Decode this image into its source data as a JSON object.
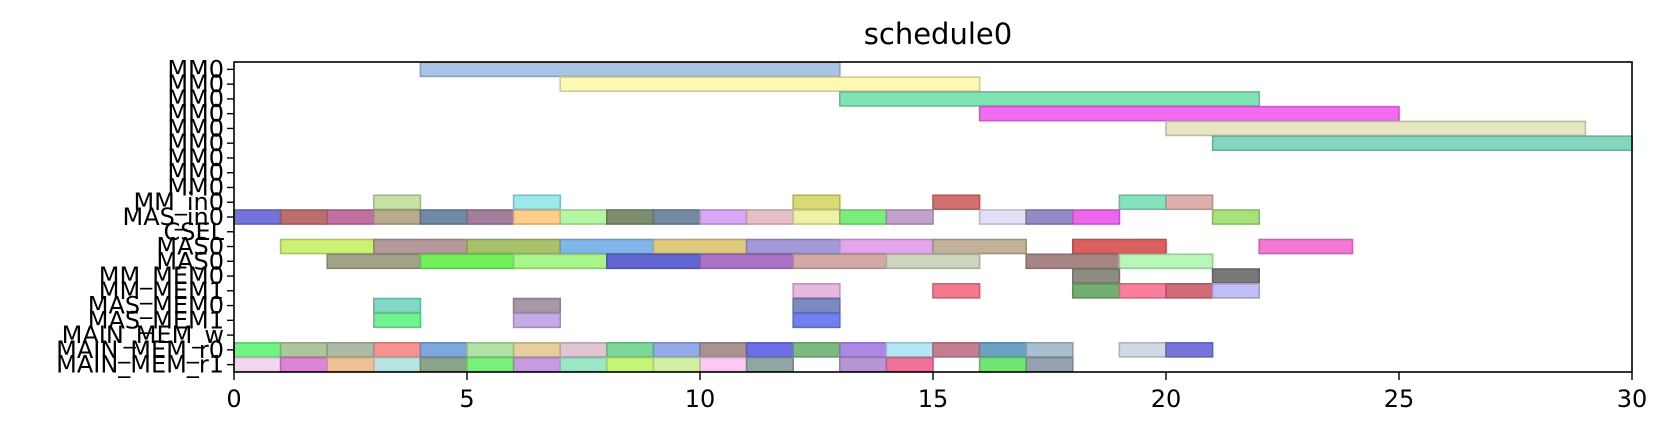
{
  "chart_data": {
    "type": "gantt",
    "title": "schedule0",
    "xlim": [
      0,
      30
    ],
    "xticks": [
      0,
      5,
      10,
      15,
      20,
      25,
      30
    ],
    "rows": [
      "MM0",
      "MM0",
      "MM0",
      "MM0",
      "MM0",
      "MM0",
      "MM0",
      "MM0",
      "MM0",
      "MM_in0",
      "MAS_in0",
      "CSEL",
      "MAS0",
      "MAS0",
      "MM_MEM0",
      "MM_MEM1",
      "MAS_MEM0",
      "MAS_MEM1",
      "MAIN_MEM_w",
      "MAIN_MEM_r0",
      "MAIN_MEM_r1"
    ],
    "ytick_labels": [
      "MM0",
      "MM0",
      "MM0",
      "MM0",
      "MM0",
      "MM0",
      "MM0",
      "MM0",
      "MM0",
      "MM_in0",
      "MAS_in0",
      "CSEL",
      "MAS0",
      "MAS0",
      "MM_MEM0",
      "MM_MEM1",
      "MAS_MEM0",
      "MAS_MEM1",
      "MAIN_MEM_w",
      "MAIN_MEM_r0",
      "MAIN_MEM_r1"
    ],
    "tasks": [
      {
        "row": 0,
        "start": 4,
        "end": 13,
        "color": "#aac4e6"
      },
      {
        "row": 1,
        "start": 7,
        "end": 16,
        "color": "#fdf9b4"
      },
      {
        "row": 2,
        "start": 13,
        "end": 22,
        "color": "#7ee4b4"
      },
      {
        "row": 3,
        "start": 16,
        "end": 25,
        "color": "#f26cf2"
      },
      {
        "row": 4,
        "start": 20,
        "end": 29,
        "color": "#e6e7c1"
      },
      {
        "row": 5,
        "start": 21,
        "end": 30,
        "color": "#84d6bf"
      },
      {
        "row": 9,
        "start": 3,
        "end": 4,
        "color": "#c6e1a4"
      },
      {
        "row": 9,
        "start": 6,
        "end": 7,
        "color": "#9aeaeb"
      },
      {
        "row": 9,
        "start": 12,
        "end": 13,
        "color": "#d9d975"
      },
      {
        "row": 9,
        "start": 15,
        "end": 16,
        "color": "#d36f6f"
      },
      {
        "row": 9,
        "start": 19,
        "end": 20,
        "color": "#86e2bc"
      },
      {
        "row": 9,
        "start": 20,
        "end": 21,
        "color": "#deafaa"
      },
      {
        "row": 10,
        "start": 0,
        "end": 1,
        "color": "#7274d9"
      },
      {
        "row": 10,
        "start": 1,
        "end": 2,
        "color": "#bc6d6d"
      },
      {
        "row": 10,
        "start": 2,
        "end": 3,
        "color": "#c26fa3"
      },
      {
        "row": 10,
        "start": 3,
        "end": 4,
        "color": "#b8ac8f"
      },
      {
        "row": 10,
        "start": 4,
        "end": 5,
        "color": "#6e8ba6"
      },
      {
        "row": 10,
        "start": 5,
        "end": 6,
        "color": "#a17f9c"
      },
      {
        "row": 10,
        "start": 6,
        "end": 7,
        "color": "#fecd8a"
      },
      {
        "row": 10,
        "start": 7,
        "end": 8,
        "color": "#b4f7a3"
      },
      {
        "row": 10,
        "start": 8,
        "end": 9,
        "color": "#7d8e6e"
      },
      {
        "row": 10,
        "start": 9,
        "end": 10,
        "color": "#738aa0"
      },
      {
        "row": 10,
        "start": 10,
        "end": 11,
        "color": "#d7a8f3"
      },
      {
        "row": 10,
        "start": 11,
        "end": 12,
        "color": "#e7bfc7"
      },
      {
        "row": 10,
        "start": 12,
        "end": 13,
        "color": "#eef2a6"
      },
      {
        "row": 10,
        "start": 13,
        "end": 14,
        "color": "#7cec7e"
      },
      {
        "row": 10,
        "start": 14,
        "end": 15,
        "color": "#c2a2cd"
      },
      {
        "row": 10,
        "start": 16,
        "end": 17,
        "color": "#e4dff7"
      },
      {
        "row": 10,
        "start": 17,
        "end": 18,
        "color": "#928ac5"
      },
      {
        "row": 10,
        "start": 18,
        "end": 19,
        "color": "#ee65ee"
      },
      {
        "row": 10,
        "start": 21,
        "end": 22,
        "color": "#a5e27a"
      },
      {
        "row": 12,
        "start": 1,
        "end": 3,
        "color": "#cdf174"
      },
      {
        "row": 12,
        "start": 3,
        "end": 5,
        "color": "#b49a9a"
      },
      {
        "row": 12,
        "start": 5,
        "end": 7,
        "color": "#a8c16a"
      },
      {
        "row": 12,
        "start": 7,
        "end": 9,
        "color": "#80b6ea"
      },
      {
        "row": 12,
        "start": 9,
        "end": 11,
        "color": "#dfca7f"
      },
      {
        "row": 12,
        "start": 11,
        "end": 13,
        "color": "#a49ad9"
      },
      {
        "row": 12,
        "start": 13,
        "end": 15,
        "color": "#e3a6ea"
      },
      {
        "row": 12,
        "start": 15,
        "end": 17,
        "color": "#c1b29b"
      },
      {
        "row": 12,
        "start": 18,
        "end": 20,
        "color": "#dc5f5f"
      },
      {
        "row": 12,
        "start": 22,
        "end": 24,
        "color": "#f478d6"
      },
      {
        "row": 13,
        "start": 2,
        "end": 4,
        "color": "#a2a388"
      },
      {
        "row": 13,
        "start": 4,
        "end": 6,
        "color": "#71f05c"
      },
      {
        "row": 13,
        "start": 6,
        "end": 8,
        "color": "#a9f589"
      },
      {
        "row": 13,
        "start": 8,
        "end": 10,
        "color": "#6366d2"
      },
      {
        "row": 13,
        "start": 10,
        "end": 12,
        "color": "#aa72c6"
      },
      {
        "row": 13,
        "start": 12,
        "end": 14,
        "color": "#d3a8a8"
      },
      {
        "row": 13,
        "start": 14,
        "end": 16,
        "color": "#cfd6bf"
      },
      {
        "row": 13,
        "start": 17,
        "end": 19,
        "color": "#a88585"
      },
      {
        "row": 13,
        "start": 19,
        "end": 21,
        "color": "#b7f7b8"
      },
      {
        "row": 14,
        "start": 18,
        "end": 19,
        "color": "#8c8c80"
      },
      {
        "row": 14,
        "start": 21,
        "end": 22,
        "color": "#787878"
      },
      {
        "row": 15,
        "start": 12,
        "end": 13,
        "color": "#e8b7df"
      },
      {
        "row": 15,
        "start": 15,
        "end": 16,
        "color": "#f37a8c"
      },
      {
        "row": 15,
        "start": 18,
        "end": 19,
        "color": "#72ad71"
      },
      {
        "row": 15,
        "start": 19,
        "end": 20,
        "color": "#fb7f9d"
      },
      {
        "row": 15,
        "start": 20,
        "end": 21,
        "color": "#d26a78"
      },
      {
        "row": 15,
        "start": 21,
        "end": 22,
        "color": "#bfc0f7"
      },
      {
        "row": 16,
        "start": 3,
        "end": 4,
        "color": "#7fd9c6"
      },
      {
        "row": 16,
        "start": 6,
        "end": 7,
        "color": "#a698a6"
      },
      {
        "row": 16,
        "start": 12,
        "end": 13,
        "color": "#7c89c2"
      },
      {
        "row": 17,
        "start": 3,
        "end": 4,
        "color": "#6ff48f"
      },
      {
        "row": 17,
        "start": 6,
        "end": 7,
        "color": "#c6ace6"
      },
      {
        "row": 17,
        "start": 12,
        "end": 13,
        "color": "#6f80f0"
      },
      {
        "row": 19,
        "start": 0,
        "end": 1,
        "color": "#70f583"
      },
      {
        "row": 19,
        "start": 1,
        "end": 2,
        "color": "#aec69c"
      },
      {
        "row": 19,
        "start": 2,
        "end": 3,
        "color": "#aebaa3"
      },
      {
        "row": 19,
        "start": 3,
        "end": 4,
        "color": "#f79391"
      },
      {
        "row": 19,
        "start": 4,
        "end": 5,
        "color": "#7ea6df"
      },
      {
        "row": 19,
        "start": 5,
        "end": 6,
        "color": "#b0e3a5"
      },
      {
        "row": 19,
        "start": 6,
        "end": 7,
        "color": "#e6cf9f"
      },
      {
        "row": 19,
        "start": 7,
        "end": 8,
        "color": "#e3c4d3"
      },
      {
        "row": 19,
        "start": 8,
        "end": 9,
        "color": "#7cd899"
      },
      {
        "row": 19,
        "start": 9,
        "end": 10,
        "color": "#96aaea"
      },
      {
        "row": 19,
        "start": 10,
        "end": 11,
        "color": "#a99292"
      },
      {
        "row": 19,
        "start": 11,
        "end": 12,
        "color": "#6e6ee8"
      },
      {
        "row": 19,
        "start": 12,
        "end": 13,
        "color": "#7eb881"
      },
      {
        "row": 19,
        "start": 13,
        "end": 14,
        "color": "#ac88e6"
      },
      {
        "row": 19,
        "start": 14,
        "end": 15,
        "color": "#b6e6f6"
      },
      {
        "row": 19,
        "start": 15,
        "end": 16,
        "color": "#c57d90"
      },
      {
        "row": 19,
        "start": 16,
        "end": 17,
        "color": "#6aa3c2"
      },
      {
        "row": 19,
        "start": 17,
        "end": 18,
        "color": "#a7bfcf"
      },
      {
        "row": 19,
        "start": 19,
        "end": 20,
        "color": "#d2d9e6"
      },
      {
        "row": 19,
        "start": 20,
        "end": 21,
        "color": "#7676da"
      },
      {
        "row": 20,
        "start": 0,
        "end": 1,
        "color": "#f3d7ee"
      },
      {
        "row": 20,
        "start": 1,
        "end": 2,
        "color": "#dc84d6"
      },
      {
        "row": 20,
        "start": 2,
        "end": 3,
        "color": "#eec296"
      },
      {
        "row": 20,
        "start": 3,
        "end": 4,
        "color": "#b8e5e2"
      },
      {
        "row": 20,
        "start": 4,
        "end": 5,
        "color": "#8ca58a"
      },
      {
        "row": 20,
        "start": 5,
        "end": 6,
        "color": "#7cf07c"
      },
      {
        "row": 20,
        "start": 6,
        "end": 7,
        "color": "#c89be0"
      },
      {
        "row": 20,
        "start": 7,
        "end": 8,
        "color": "#9ae7c6"
      },
      {
        "row": 20,
        "start": 8,
        "end": 9,
        "color": "#c7f776"
      },
      {
        "row": 20,
        "start": 9,
        "end": 10,
        "color": "#d2f0a4"
      },
      {
        "row": 20,
        "start": 10,
        "end": 11,
        "color": "#fbc9f3"
      },
      {
        "row": 20,
        "start": 11,
        "end": 12,
        "color": "#8fa6a2"
      },
      {
        "row": 20,
        "start": 13,
        "end": 14,
        "color": "#b896d6"
      },
      {
        "row": 20,
        "start": 14,
        "end": 15,
        "color": "#f07298"
      },
      {
        "row": 20,
        "start": 16,
        "end": 17,
        "color": "#72e672"
      },
      {
        "row": 20,
        "start": 17,
        "end": 18,
        "color": "#96a1b0"
      }
    ]
  }
}
